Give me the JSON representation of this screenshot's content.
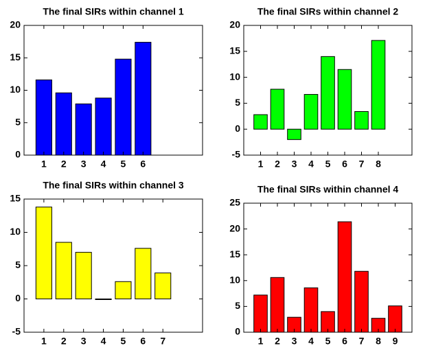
{
  "chart_data": [
    {
      "type": "bar",
      "title": "The final SIRs within channel 1",
      "color": "#0000ff",
      "x": [
        1,
        2,
        3,
        4,
        5,
        6
      ],
      "values": [
        11.6,
        9.6,
        7.9,
        8.8,
        14.8,
        17.4
      ],
      "xlim": [
        0,
        9
      ],
      "xticks": [
        1,
        2,
        3,
        4,
        5,
        6
      ],
      "ylim": [
        0,
        20
      ],
      "yticks": [
        0,
        5,
        10,
        15,
        20
      ]
    },
    {
      "type": "bar",
      "title": "The final SIRs within channel 2",
      "color": "#00ff00",
      "x": [
        1,
        2,
        3,
        4,
        5,
        6,
        7,
        8
      ],
      "values": [
        2.8,
        7.7,
        -2.0,
        6.7,
        14.0,
        11.5,
        3.4,
        17.1
      ],
      "xlim": [
        0,
        10
      ],
      "xticks": [
        1,
        2,
        3,
        4,
        5,
        6,
        7,
        8
      ],
      "ylim": [
        -5,
        20
      ],
      "yticks": [
        -5,
        0,
        5,
        10,
        15,
        20
      ]
    },
    {
      "type": "bar",
      "title": "The final SIRs within channel 3",
      "color": "#ffff00",
      "x": [
        1,
        2,
        3,
        4,
        5,
        6,
        7
      ],
      "values": [
        13.8,
        8.5,
        7.0,
        -0.1,
        2.6,
        7.6,
        3.9
      ],
      "xlim": [
        0,
        9
      ],
      "xticks": [
        1,
        2,
        3,
        4,
        5,
        6,
        7
      ],
      "ylim": [
        -5,
        15
      ],
      "yticks": [
        -5,
        0,
        5,
        10,
        15
      ]
    },
    {
      "type": "bar",
      "title": "The final SIRs within channel 4",
      "color": "#ff0000",
      "x": [
        1,
        2,
        3,
        4,
        5,
        6,
        7,
        8,
        9
      ],
      "values": [
        7.2,
        10.6,
        2.9,
        8.6,
        4.0,
        21.4,
        11.8,
        2.7,
        5.1
      ],
      "xlim": [
        0,
        10
      ],
      "xticks": [
        1,
        2,
        3,
        4,
        5,
        6,
        7,
        8,
        9
      ],
      "ylim": [
        0,
        25
      ],
      "yticks": [
        0,
        5,
        10,
        15,
        20,
        25
      ]
    }
  ]
}
